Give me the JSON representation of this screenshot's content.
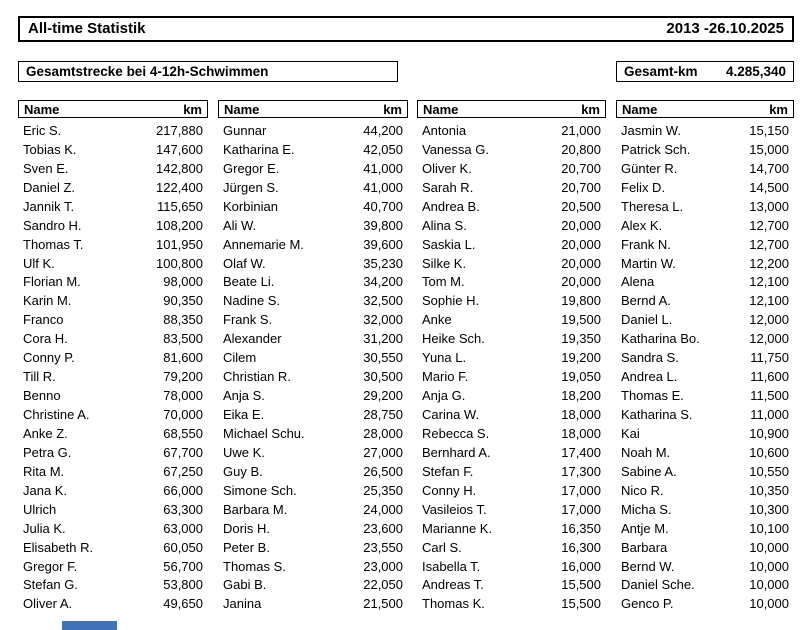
{
  "header": {
    "title": "All-time Statistik",
    "date_range": "2013 -26.10.2025"
  },
  "subheader": {
    "event_label": "Gesamtstrecke bei 4-12h-Schwimmen",
    "total_label": "Gesamt-km",
    "total_value": "4.285,340"
  },
  "table_header": {
    "name": "Name",
    "km": "km"
  },
  "colors": {
    "border": "#000000",
    "text": "#000000",
    "background": "#ffffff",
    "bottom_bar": "#4472b8"
  },
  "tables": [
    {
      "rows": [
        {
          "name": "Eric S.",
          "km": "217,880"
        },
        {
          "name": "Tobias K.",
          "km": "147,600"
        },
        {
          "name": "Sven E.",
          "km": "142,800"
        },
        {
          "name": "Daniel Z.",
          "km": "122,400"
        },
        {
          "name": "Jannik T.",
          "km": "115,650"
        },
        {
          "name": "Sandro H.",
          "km": "108,200"
        },
        {
          "name": "Thomas T.",
          "km": "101,950"
        },
        {
          "name": "Ulf K.",
          "km": "100,800"
        },
        {
          "name": "Florian M.",
          "km": "98,000"
        },
        {
          "name": "Karin M.",
          "km": "90,350"
        },
        {
          "name": "Franco",
          "km": "88,350"
        },
        {
          "name": "Cora H.",
          "km": "83,500"
        },
        {
          "name": "Conny P.",
          "km": "81,600"
        },
        {
          "name": "Till R.",
          "km": "79,200"
        },
        {
          "name": "Benno",
          "km": "78,000"
        },
        {
          "name": "Christine A.",
          "km": "70,000"
        },
        {
          "name": "Anke Z.",
          "km": "68,550"
        },
        {
          "name": "Petra G.",
          "km": "67,700"
        },
        {
          "name": "Rita M.",
          "km": "67,250"
        },
        {
          "name": "Jana K.",
          "km": "66,000"
        },
        {
          "name": "Ulrich",
          "km": "63,300"
        },
        {
          "name": "Julia K.",
          "km": "63,000"
        },
        {
          "name": "Elisabeth R.",
          "km": "60,050"
        },
        {
          "name": "Gregor F.",
          "km": "56,700"
        },
        {
          "name": "Stefan G.",
          "km": "53,800"
        },
        {
          "name": "Oliver A.",
          "km": "49,650"
        }
      ]
    },
    {
      "rows": [
        {
          "name": "Gunnar",
          "km": "44,200"
        },
        {
          "name": "Katharina E.",
          "km": "42,050"
        },
        {
          "name": "Gregor E.",
          "km": "41,000"
        },
        {
          "name": "Jürgen S.",
          "km": "41,000"
        },
        {
          "name": "Korbinian",
          "km": "40,700"
        },
        {
          "name": "Ali W.",
          "km": "39,800"
        },
        {
          "name": "Annemarie M.",
          "km": "39,600"
        },
        {
          "name": "Olaf W.",
          "km": "35,230"
        },
        {
          "name": "Beate Li.",
          "km": "34,200"
        },
        {
          "name": "Nadine S.",
          "km": "32,500"
        },
        {
          "name": "Frank S.",
          "km": "32,000"
        },
        {
          "name": "Alexander",
          "km": "31,200"
        },
        {
          "name": "Cilem",
          "km": "30,550"
        },
        {
          "name": "Christian R.",
          "km": "30,500"
        },
        {
          "name": "Anja S.",
          "km": "29,200"
        },
        {
          "name": "Eika E.",
          "km": "28,750"
        },
        {
          "name": "Michael Schu.",
          "km": "28,000"
        },
        {
          "name": "Uwe K.",
          "km": "27,000"
        },
        {
          "name": "Guy B.",
          "km": "26,500"
        },
        {
          "name": "Simone Sch.",
          "km": "25,350"
        },
        {
          "name": "Barbara M.",
          "km": "24,000"
        },
        {
          "name": "Doris H.",
          "km": "23,600"
        },
        {
          "name": "Peter B.",
          "km": "23,550"
        },
        {
          "name": "Thomas S.",
          "km": "23,000"
        },
        {
          "name": "Gabi B.",
          "km": "22,050"
        },
        {
          "name": "Janina",
          "km": "21,500"
        }
      ]
    },
    {
      "rows": [
        {
          "name": "Antonia",
          "km": "21,000"
        },
        {
          "name": "Vanessa G.",
          "km": "20,800"
        },
        {
          "name": "Oliver K.",
          "km": "20,700"
        },
        {
          "name": "Sarah R.",
          "km": "20,700"
        },
        {
          "name": "Andrea B.",
          "km": "20,500"
        },
        {
          "name": "Alina S.",
          "km": "20,000"
        },
        {
          "name": "Saskia L.",
          "km": "20,000"
        },
        {
          "name": "Silke K.",
          "km": "20,000"
        },
        {
          "name": "Tom M.",
          "km": "20,000"
        },
        {
          "name": "Sophie H.",
          "km": "19,800"
        },
        {
          "name": "Anke",
          "km": "19,500"
        },
        {
          "name": "Heike Sch.",
          "km": "19,350"
        },
        {
          "name": "Yuna L.",
          "km": "19,200"
        },
        {
          "name": "Mario F.",
          "km": "19,050"
        },
        {
          "name": "Anja G.",
          "km": "18,200"
        },
        {
          "name": "Carina W.",
          "km": "18,000"
        },
        {
          "name": "Rebecca S.",
          "km": "18,000"
        },
        {
          "name": "Bernhard A.",
          "km": "17,400"
        },
        {
          "name": "Stefan F.",
          "km": "17,300"
        },
        {
          "name": "Conny H.",
          "km": "17,000"
        },
        {
          "name": "Vasileios T.",
          "km": "17,000"
        },
        {
          "name": "Marianne K.",
          "km": "16,350"
        },
        {
          "name": "Carl S.",
          "km": "16,300"
        },
        {
          "name": "Isabella T.",
          "km": "16,000"
        },
        {
          "name": "Andreas T.",
          "km": "15,500"
        },
        {
          "name": "Thomas K.",
          "km": "15,500"
        }
      ]
    },
    {
      "rows": [
        {
          "name": "Jasmin W.",
          "km": "15,150"
        },
        {
          "name": "Patrick Sch.",
          "km": "15,000"
        },
        {
          "name": "Günter R.",
          "km": "14,700"
        },
        {
          "name": "Felix D.",
          "km": "14,500"
        },
        {
          "name": "Theresa L.",
          "km": "13,000"
        },
        {
          "name": "Alex K.",
          "km": "12,700"
        },
        {
          "name": "Frank N.",
          "km": "12,700"
        },
        {
          "name": "Martin W.",
          "km": "12,200"
        },
        {
          "name": "Alena",
          "km": "12,100"
        },
        {
          "name": "Bernd A.",
          "km": "12,100"
        },
        {
          "name": "Daniel L.",
          "km": "12,000"
        },
        {
          "name": "Katharina Bo.",
          "km": "12,000"
        },
        {
          "name": "Sandra S.",
          "km": "11,750"
        },
        {
          "name": "Andrea L.",
          "km": "11,600"
        },
        {
          "name": "Thomas E.",
          "km": "11,500"
        },
        {
          "name": "Katharina S.",
          "km": "11,000"
        },
        {
          "name": "Kai",
          "km": "10,900"
        },
        {
          "name": "Noah M.",
          "km": "10,600"
        },
        {
          "name": "Sabine A.",
          "km": "10,550"
        },
        {
          "name": "Nico R.",
          "km": "10,350"
        },
        {
          "name": "Micha S.",
          "km": "10,300"
        },
        {
          "name": "Antje M.",
          "km": "10,100"
        },
        {
          "name": "Barbara",
          "km": "10,000"
        },
        {
          "name": "Bernd W.",
          "km": "10,000"
        },
        {
          "name": "Daniel Sche.",
          "km": "10,000"
        },
        {
          "name": "Genco P.",
          "km": "10,000"
        }
      ]
    }
  ]
}
